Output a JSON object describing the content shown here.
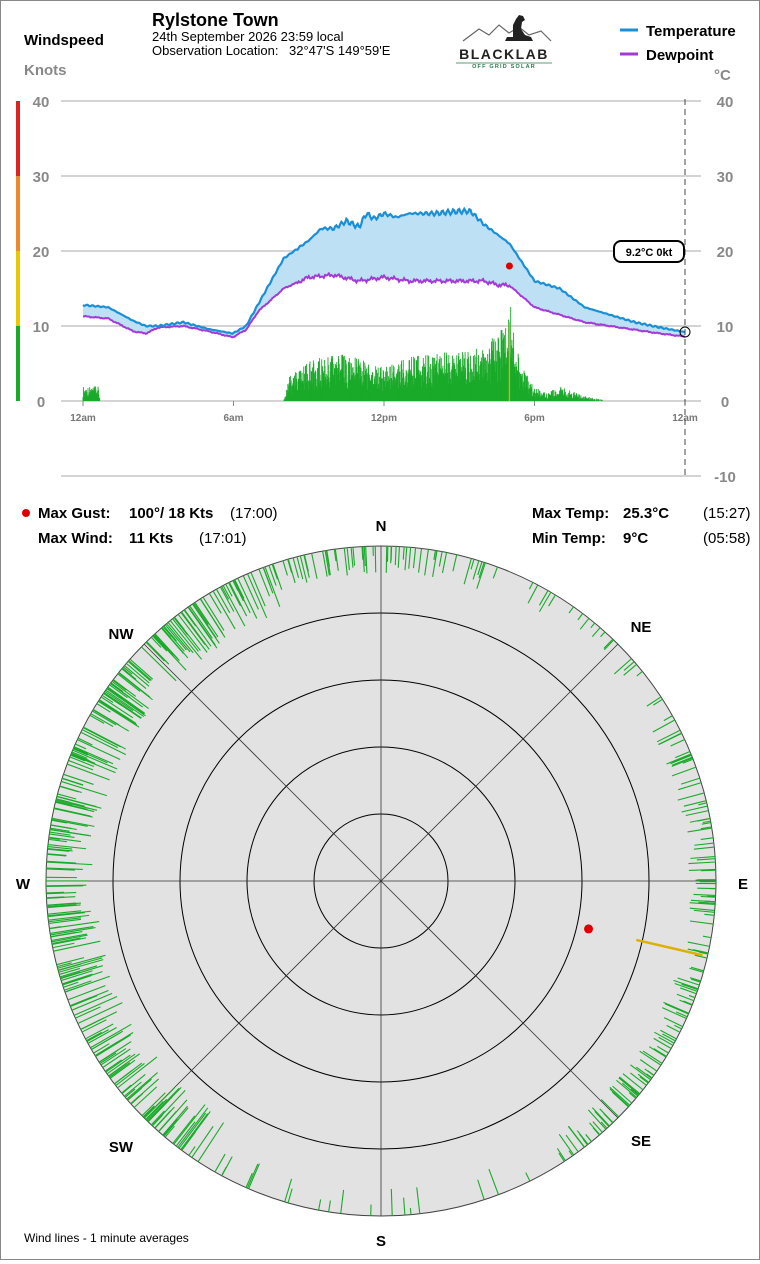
{
  "header": {
    "left_title": "Windspeed",
    "left_units": "Knots",
    "station": "Rylstone Town",
    "datetime": "24th September 2026  23:59 local",
    "location_label": "Observation Location:",
    "location_value": "32°47'S 149°59'E",
    "logo_name": "BLACKLAB",
    "logo_sub": "OFF GRID SOLAR",
    "right_units": "°C"
  },
  "legend": {
    "temperature": "Temperature",
    "dewpoint": "Dewpoint"
  },
  "colors": {
    "temperature": "#1a8fd8",
    "dewpoint": "#a43ad6",
    "fill": "#bde0f5",
    "wind": "#1aaa2a",
    "gust": "#e0b000",
    "gust_dot": "#dd0000",
    "compass_bg": "#e2e2e2"
  },
  "current": {
    "label": "9.2°C  0kt"
  },
  "stats": {
    "max_gust_label": "Max Gust:",
    "max_gust_value": "100°/  18 Kts",
    "max_gust_time": "(17:00)",
    "max_wind_label": "Max Wind:",
    "max_wind_value": "11 Kts",
    "max_wind_time": "(17:01)",
    "max_temp_label": "Max Temp:",
    "max_temp_value": "25.3°C",
    "max_temp_time": "(15:27)",
    "min_temp_label": "Min Temp:",
    "min_temp_value": "9°C",
    "min_temp_time": "(05:58)"
  },
  "compass": {
    "labels": {
      "N": "N",
      "NE": "NE",
      "E": "E",
      "SE": "SE",
      "S": "S",
      "SW": "SW",
      "W": "W",
      "NW": "NW"
    },
    "gust_direction_deg": 100,
    "gust_knots": 18,
    "wind_direction_deg": 103,
    "wind_knots": 11
  },
  "footer": "Wind lines - 1 minute averages",
  "chart_data": {
    "type": "line",
    "x_tick_labels": [
      "12am",
      "6am",
      "12pm",
      "6pm",
      "12am"
    ],
    "x_tick_hours": [
      0,
      6,
      12,
      18,
      24
    ],
    "left_axis": {
      "label": "Knots",
      "ticks": [
        0,
        10,
        20,
        30,
        40
      ],
      "range": [
        0,
        40
      ]
    },
    "right_axis": {
      "label": "°C",
      "ticks": [
        -10,
        0,
        10,
        20,
        30,
        40
      ],
      "range": [
        -10,
        40
      ]
    },
    "grid": true,
    "legend_position": "top-right",
    "series": [
      {
        "name": "Temperature",
        "unit": "°C",
        "hours": [
          0,
          1,
          2,
          2.5,
          3,
          4,
          5,
          5.97,
          6.5,
          7,
          8,
          9,
          9.5,
          10,
          10.5,
          11,
          11.3,
          11.6,
          12,
          12.5,
          13,
          14,
          15,
          15.45,
          16,
          17,
          18,
          19,
          20,
          21,
          22,
          23,
          23.98
        ],
        "values": [
          12.8,
          12.5,
          10.7,
          10,
          10,
          10.5,
          9.6,
          9,
          10,
          13,
          19,
          21.4,
          23,
          23,
          24,
          23.2,
          25,
          24.3,
          25,
          24.5,
          25,
          25,
          25.3,
          25.3,
          23.5,
          21,
          16,
          15,
          12.5,
          11.5,
          10.5,
          9.8,
          9.2
        ]
      },
      {
        "name": "Dewpoint",
        "unit": "°C",
        "hours": [
          0,
          1,
          2,
          2.5,
          3,
          4,
          5,
          5.97,
          6.5,
          7,
          8,
          9,
          10,
          11,
          12,
          13,
          14,
          15,
          16,
          16.5,
          17,
          18,
          19,
          20,
          21,
          22,
          23,
          23.98
        ],
        "values": [
          11.3,
          11,
          9.3,
          9,
          9.8,
          10,
          9.3,
          8.5,
          9.5,
          12,
          15,
          16.5,
          16.8,
          16,
          16.5,
          16,
          16,
          16,
          16,
          15.5,
          15.4,
          12.5,
          11.5,
          10.5,
          10,
          9.5,
          9,
          8.6
        ]
      },
      {
        "name": "Windspeed",
        "unit": "kt",
        "hours": [
          0,
          0.6,
          0.7,
          1,
          2,
          3,
          4,
          5,
          6,
          7,
          8,
          8.2,
          9,
          10,
          11,
          12,
          13,
          14,
          15,
          16,
          16.8,
          17,
          17.2,
          17.5,
          18,
          18.5,
          19,
          19.5,
          20,
          21,
          22,
          23,
          24
        ],
        "values": [
          1.5,
          1.5,
          0,
          0,
          0,
          0,
          0,
          0,
          0,
          0,
          0,
          2.5,
          4,
          5,
          4.5,
          3.5,
          4.5,
          5,
          5,
          5.5,
          8,
          11,
          7,
          3.5,
          1.5,
          0.8,
          1.5,
          1,
          0.5,
          0,
          0,
          0,
          0
        ]
      }
    ],
    "max_gust": {
      "hour": 17.0,
      "knots": 18,
      "direction_deg": 100
    }
  }
}
